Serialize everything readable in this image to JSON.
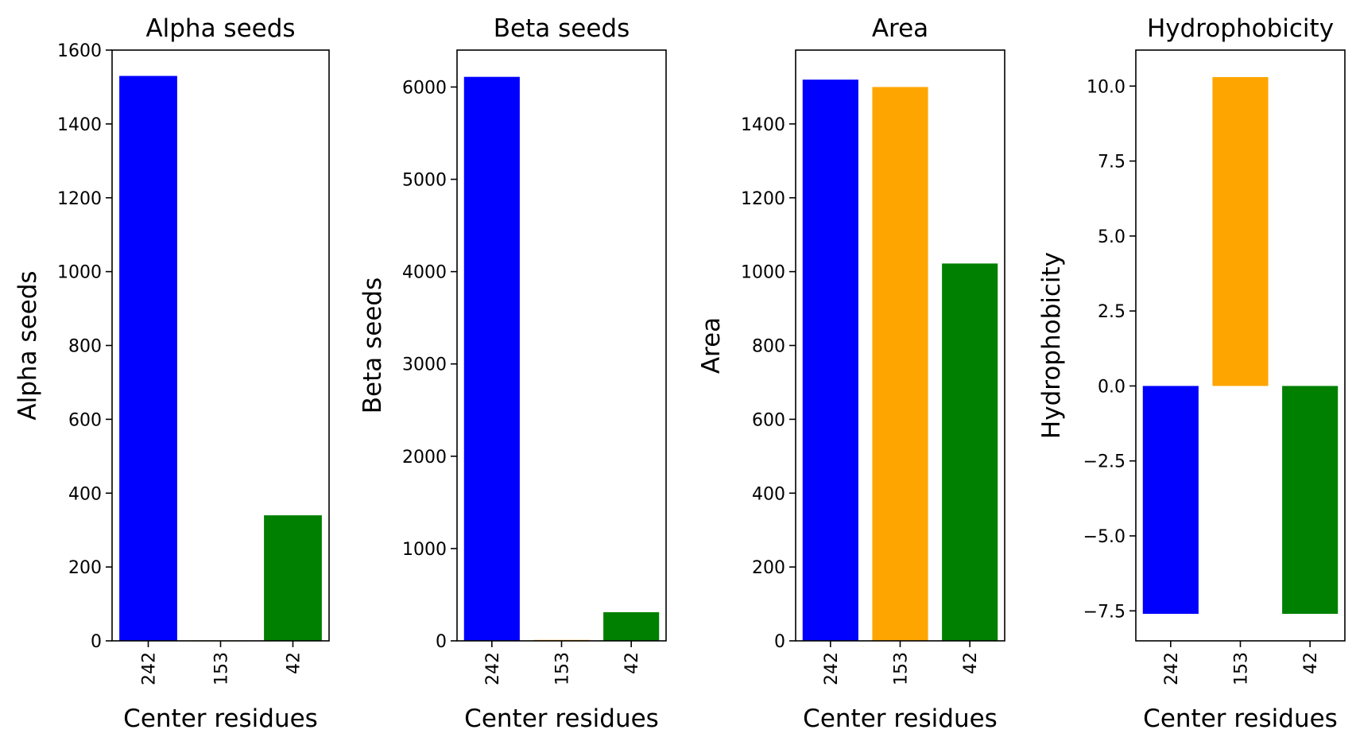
{
  "chart_data": [
    {
      "type": "bar",
      "title": "Alpha seeds",
      "xlabel": "Center residues",
      "ylabel": "Alpha seeds",
      "categories": [
        "242",
        "153",
        "42"
      ],
      "values": [
        1530,
        0,
        340
      ],
      "colors": [
        "#0000ff",
        "#ffa500",
        "#008000"
      ],
      "ylim": [
        0,
        1600
      ],
      "yticks": [
        0,
        200,
        400,
        600,
        800,
        1000,
        1200,
        1400,
        1600
      ],
      "ytick_labels": [
        "0",
        "200",
        "400",
        "600",
        "800",
        "1000",
        "1200",
        "1400",
        "1600"
      ],
      "grid": false
    },
    {
      "type": "bar",
      "title": "Beta seeds",
      "xlabel": "Center residues",
      "ylabel": "Beta seeds",
      "categories": [
        "242",
        "153",
        "42"
      ],
      "values": [
        6110,
        10,
        310
      ],
      "colors": [
        "#0000ff",
        "#ffa500",
        "#008000"
      ],
      "ylim": [
        0,
        6400
      ],
      "yticks": [
        0,
        1000,
        2000,
        3000,
        4000,
        5000,
        6000
      ],
      "ytick_labels": [
        "0",
        "1000",
        "2000",
        "3000",
        "4000",
        "5000",
        "6000"
      ],
      "grid": false
    },
    {
      "type": "bar",
      "title": "Area",
      "xlabel": "Center residues",
      "ylabel": "Area",
      "categories": [
        "242",
        "153",
        "42"
      ],
      "values": [
        1520,
        1500,
        1022
      ],
      "colors": [
        "#0000ff",
        "#ffa500",
        "#008000"
      ],
      "ylim": [
        0,
        1600
      ],
      "yticks": [
        0,
        200,
        400,
        600,
        800,
        1000,
        1200,
        1400
      ],
      "ytick_labels": [
        "0",
        "200",
        "400",
        "600",
        "800",
        "1000",
        "1200",
        "1400"
      ],
      "grid": false
    },
    {
      "type": "bar",
      "title": "Hydrophobicity",
      "xlabel": "Center residues",
      "ylabel": "Hydrophobicity",
      "categories": [
        "242",
        "153",
        "42"
      ],
      "values": [
        -7.6,
        10.3,
        -7.6
      ],
      "colors": [
        "#0000ff",
        "#ffa500",
        "#008000"
      ],
      "ylim": [
        -8.5,
        11.2
      ],
      "yticks": [
        -7.5,
        -5.0,
        -2.5,
        0.0,
        2.5,
        5.0,
        7.5,
        10.0
      ],
      "ytick_labels": [
        "−7.5",
        "−5.0",
        "−2.5",
        "0.0",
        "2.5",
        "5.0",
        "7.5",
        "10.0"
      ],
      "grid": false
    }
  ]
}
